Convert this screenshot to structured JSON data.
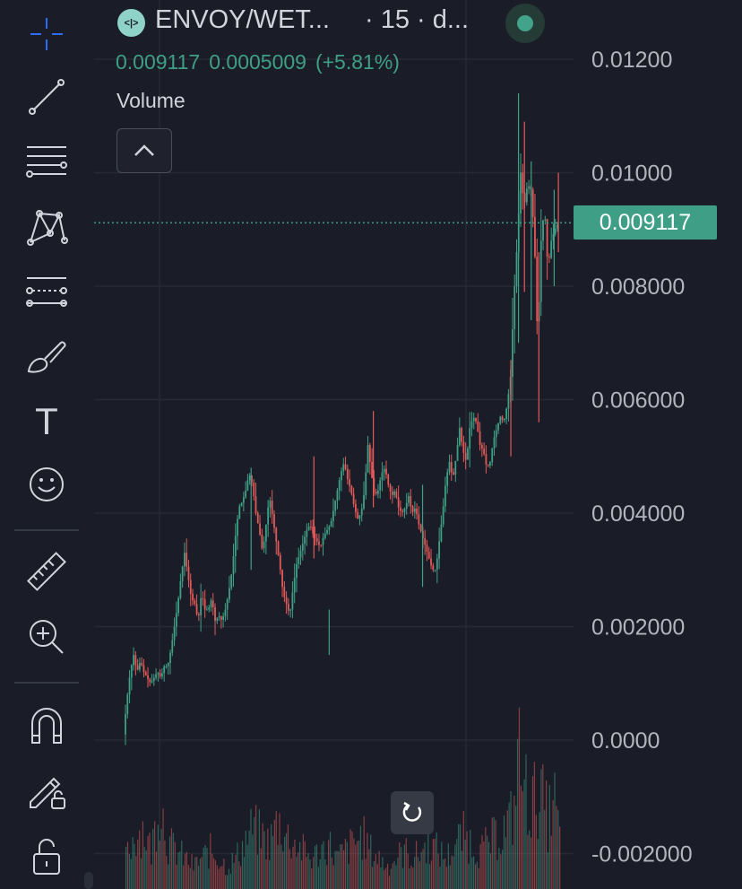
{
  "header": {
    "symbol_logo": "<|>",
    "symbol": "ENVOY/WET...",
    "interval": "· 15 · d...",
    "price": "0.009117",
    "change": "0.0005009",
    "change_pct": "(+5.81%)",
    "up_color": "#3f9f86",
    "down_color": "#e05a5a"
  },
  "volume_label": "Volume",
  "toolbar": {
    "tools": [
      "crosshair-icon",
      "trend-line-icon",
      "horizontal-lines-icon",
      "pattern-icon",
      "forecast-icon",
      "brush-icon",
      "text-icon",
      "emoji-icon",
      "ruler-icon",
      "zoom-in-icon",
      "magnet-icon",
      "lock-drawings-icon",
      "lock-icon"
    ],
    "text_tool_glyph": "T"
  },
  "chart_data": {
    "type": "candlestick",
    "title": "",
    "xlabel": "",
    "ylabel": "",
    "ylim": [
      -0.0026,
      0.0131
    ],
    "y_ticks": [
      "0.01200",
      "0.01000",
      "0.008000",
      "0.006000",
      "0.004000",
      "0.002000",
      "0.0000",
      "-0.002000"
    ],
    "y_tick_values": [
      0.012,
      0.01,
      0.008,
      0.006,
      0.004,
      0.002,
      0.0,
      -0.002
    ],
    "last_price": 0.009117,
    "last_price_label": "0.009117",
    "grid": true,
    "price_path": [
      [
        0,
        0.0001
      ],
      [
        4,
        0.0007
      ],
      [
        8,
        0.0012
      ],
      [
        12,
        0.0015
      ],
      [
        16,
        0.0012
      ],
      [
        20,
        0.0014
      ],
      [
        24,
        0.0012
      ],
      [
        28,
        0.0011
      ],
      [
        32,
        0.001
      ],
      [
        36,
        0.0011
      ],
      [
        40,
        0.0012
      ],
      [
        44,
        0.0011
      ],
      [
        48,
        0.0013
      ],
      [
        52,
        0.0013
      ],
      [
        56,
        0.0016
      ],
      [
        60,
        0.002
      ],
      [
        64,
        0.0024
      ],
      [
        68,
        0.0029
      ],
      [
        72,
        0.0033
      ],
      [
        76,
        0.0029
      ],
      [
        80,
        0.0025
      ],
      [
        84,
        0.0024
      ],
      [
        88,
        0.0021
      ],
      [
        92,
        0.0026
      ],
      [
        96,
        0.0023
      ],
      [
        100,
        0.0023
      ],
      [
        104,
        0.0025
      ],
      [
        108,
        0.0021
      ],
      [
        112,
        0.0022
      ],
      [
        116,
        0.0021
      ],
      [
        120,
        0.0023
      ],
      [
        124,
        0.0026
      ],
      [
        128,
        0.003
      ],
      [
        132,
        0.0036
      ],
      [
        136,
        0.0041
      ],
      [
        140,
        0.0042
      ],
      [
        144,
        0.0044
      ],
      [
        148,
        0.0047
      ],
      [
        152,
        0.0045
      ],
      [
        156,
        0.004
      ],
      [
        160,
        0.0037
      ],
      [
        164,
        0.0033
      ],
      [
        168,
        0.0038
      ],
      [
        172,
        0.0043
      ],
      [
        176,
        0.0039
      ],
      [
        180,
        0.0035
      ],
      [
        184,
        0.0031
      ],
      [
        188,
        0.0026
      ],
      [
        192,
        0.0024
      ],
      [
        196,
        0.0022
      ],
      [
        200,
        0.0027
      ],
      [
        204,
        0.0031
      ],
      [
        208,
        0.0033
      ],
      [
        212,
        0.0035
      ],
      [
        216,
        0.0037
      ],
      [
        220,
        0.0038
      ],
      [
        224,
        0.0036
      ],
      [
        228,
        0.0035
      ],
      [
        232,
        0.0034
      ],
      [
        236,
        0.0036
      ],
      [
        240,
        0.0037
      ],
      [
        244,
        0.0038
      ],
      [
        248,
        0.0041
      ],
      [
        252,
        0.0044
      ],
      [
        256,
        0.0047
      ],
      [
        260,
        0.0049
      ],
      [
        264,
        0.0046
      ],
      [
        268,
        0.0044
      ],
      [
        272,
        0.0041
      ],
      [
        276,
        0.0039
      ],
      [
        280,
        0.004
      ],
      [
        284,
        0.0044
      ],
      [
        288,
        0.0052
      ],
      [
        292,
        0.0047
      ],
      [
        296,
        0.0043
      ],
      [
        300,
        0.0044
      ],
      [
        304,
        0.0047
      ],
      [
        308,
        0.0048
      ],
      [
        312,
        0.0045
      ],
      [
        316,
        0.0043
      ],
      [
        320,
        0.0044
      ],
      [
        324,
        0.0041
      ],
      [
        328,
        0.004
      ],
      [
        332,
        0.0041
      ],
      [
        336,
        0.0043
      ],
      [
        340,
        0.004
      ],
      [
        344,
        0.0041
      ],
      [
        348,
        0.0038
      ],
      [
        352,
        0.0036
      ],
      [
        356,
        0.0034
      ],
      [
        360,
        0.0032
      ],
      [
        364,
        0.003
      ],
      [
        368,
        0.003
      ],
      [
        372,
        0.0035
      ],
      [
        376,
        0.004
      ],
      [
        380,
        0.0046
      ],
      [
        384,
        0.0049
      ],
      [
        388,
        0.0046
      ],
      [
        392,
        0.005
      ],
      [
        396,
        0.0055
      ],
      [
        400,
        0.0051
      ],
      [
        404,
        0.0049
      ],
      [
        408,
        0.0055
      ],
      [
        412,
        0.0057
      ],
      [
        416,
        0.0056
      ],
      [
        420,
        0.0052
      ],
      [
        424,
        0.0051
      ],
      [
        428,
        0.0048
      ],
      [
        432,
        0.0049
      ],
      [
        436,
        0.0053
      ],
      [
        440,
        0.0055
      ],
      [
        444,
        0.0057
      ],
      [
        448,
        0.0056
      ],
      [
        452,
        0.0059
      ],
      [
        456,
        0.0064
      ],
      [
        460,
        0.0078
      ],
      [
        464,
        0.0088
      ],
      [
        468,
        0.01
      ],
      [
        472,
        0.0094
      ],
      [
        476,
        0.0098
      ],
      [
        480,
        0.0097
      ],
      [
        484,
        0.0089
      ],
      [
        488,
        0.007
      ],
      [
        492,
        0.0088
      ],
      [
        496,
        0.0094
      ],
      [
        500,
        0.0083
      ],
      [
        504,
        0.0088
      ],
      [
        508,
        0.009
      ],
      [
        512,
        0.0091
      ]
    ],
    "wicks": [
      [
        148,
        0.0048,
        0.003
      ],
      [
        222,
        0.005,
        0.0032
      ],
      [
        240,
        0.0023,
        0.0015
      ],
      [
        292,
        0.0058,
        0.0041
      ],
      [
        350,
        0.0045,
        0.0027
      ],
      [
        454,
        0.0067,
        0.005
      ],
      [
        463,
        0.0114,
        0.007
      ],
      [
        470,
        0.0109,
        0.0079
      ],
      [
        478,
        0.0102,
        0.0074
      ],
      [
        487,
        0.0086,
        0.0056
      ],
      [
        505,
        0.0097,
        0.008
      ],
      [
        510,
        0.01,
        0.0086
      ]
    ],
    "volume_path": [
      [
        0,
        0.2
      ],
      [
        10,
        0.35
      ],
      [
        20,
        0.4
      ],
      [
        30,
        0.25
      ],
      [
        40,
        0.6
      ],
      [
        50,
        0.3
      ],
      [
        60,
        0.25
      ],
      [
        70,
        0.2
      ],
      [
        80,
        0.15
      ],
      [
        90,
        0.2
      ],
      [
        100,
        0.25
      ],
      [
        110,
        0.2
      ],
      [
        120,
        0.15
      ],
      [
        130,
        0.2
      ],
      [
        140,
        0.3
      ],
      [
        150,
        0.4
      ],
      [
        160,
        0.35
      ],
      [
        170,
        0.3
      ],
      [
        180,
        0.45
      ],
      [
        190,
        0.35
      ],
      [
        200,
        0.3
      ],
      [
        210,
        0.25
      ],
      [
        220,
        0.2
      ],
      [
        230,
        0.25
      ],
      [
        240,
        0.3
      ],
      [
        250,
        0.2
      ],
      [
        260,
        0.25
      ],
      [
        270,
        0.3
      ],
      [
        280,
        0.35
      ],
      [
        290,
        0.25
      ],
      [
        300,
        0.2
      ],
      [
        310,
        0.15
      ],
      [
        320,
        0.2
      ],
      [
        330,
        0.25
      ],
      [
        340,
        0.2
      ],
      [
        350,
        0.25
      ],
      [
        360,
        0.3
      ],
      [
        370,
        0.25
      ],
      [
        380,
        0.2
      ],
      [
        390,
        0.3
      ],
      [
        400,
        0.35
      ],
      [
        410,
        0.3
      ],
      [
        420,
        0.25
      ],
      [
        430,
        0.3
      ],
      [
        440,
        0.35
      ],
      [
        450,
        0.4
      ],
      [
        460,
        0.5
      ],
      [
        463,
        1.0
      ],
      [
        470,
        0.7
      ],
      [
        480,
        0.55
      ],
      [
        490,
        0.65
      ],
      [
        500,
        0.45
      ],
      [
        507,
        0.6
      ],
      [
        515,
        0.3
      ]
    ]
  }
}
